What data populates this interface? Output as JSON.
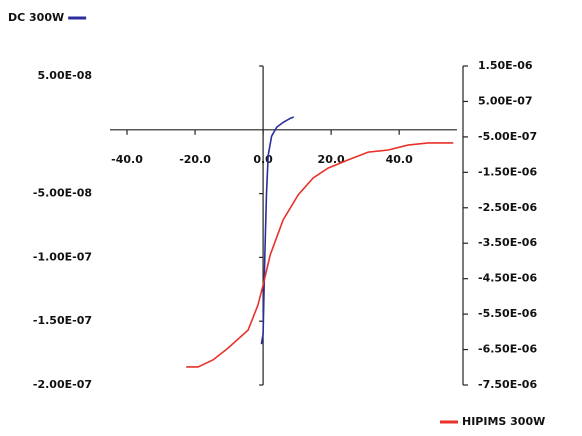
{
  "chart_data": {
    "type": "line",
    "xlim": [
      -45,
      57
    ],
    "xticks": [
      {
        "value": -40,
        "label": "-40.0"
      },
      {
        "value": -20,
        "label": "-20.0"
      },
      {
        "value": 0,
        "label": "0.0"
      },
      {
        "value": 20,
        "label": "20.0"
      },
      {
        "value": 40,
        "label": "40.0"
      }
    ],
    "ylim": [
      -2e-07,
      5e-08
    ],
    "yticks": [
      {
        "value": 5e-08,
        "label": "5.00E-08"
      },
      {
        "value": -5e-08,
        "label": "-5.00E-08"
      },
      {
        "value": -1e-07,
        "label": "-1.00E-07"
      },
      {
        "value": -1.5e-07,
        "label": "-1.50E-07"
      },
      {
        "value": -2e-07,
        "label": "-2.00E-07"
      }
    ],
    "y2lim": [
      -7.5e-06,
      1.5e-06
    ],
    "y2ticks": [
      {
        "value": 1.5e-06,
        "label": "1.50E-06"
      },
      {
        "value": 5e-07,
        "label": "5.00E-07"
      },
      {
        "value": -5e-07,
        "label": "-5.00E-07"
      },
      {
        "value": -1.5e-06,
        "label": "-1.50E-06"
      },
      {
        "value": -2.5e-06,
        "label": "-2.50E-06"
      },
      {
        "value": -3.5e-06,
        "label": "-3.50E-06"
      },
      {
        "value": -4.5e-06,
        "label": "-4.50E-06"
      },
      {
        "value": -5.5e-06,
        "label": "-5.50E-06"
      },
      {
        "value": -6.5e-06,
        "label": "-6.50E-06"
      },
      {
        "value": -7.5e-06,
        "label": "-7.50E-06"
      }
    ],
    "series": [
      {
        "name": "DC 300W",
        "color": "#2b2f9e",
        "axis": "y",
        "x": [
          -0.5,
          0,
          0.5,
          1,
          1.5,
          2.5,
          4,
          6,
          8,
          9
        ],
        "values": [
          -1.68e-07,
          -1.6e-07,
          -1e-07,
          -5e-08,
          -2e-08,
          -5e-09,
          2e-09,
          6e-09,
          9e-09,
          1e-08
        ]
      },
      {
        "name": "HIPIMS 300W",
        "color": "#e8322a",
        "axis": "y2",
        "x": [
          -22.6,
          -19.1,
          -14.7,
          -10.3,
          -4.4,
          -1.5,
          0,
          2.1,
          5.9,
          10.3,
          14.7,
          19.1,
          25,
          30.9,
          36.8,
          42.6,
          48.5,
          55.9
        ],
        "values": [
          -6.99e-06,
          -6.99e-06,
          -6.79e-06,
          -6.46e-06,
          -5.95e-06,
          -5.24e-06,
          -4.68e-06,
          -3.83e-06,
          -2.84e-06,
          -2.14e-06,
          -1.66e-06,
          -1.38e-06,
          -1.15e-06,
          -9.3e-07,
          -8.7e-07,
          -7.3e-07,
          -6.7e-07,
          -6.7e-07
        ]
      }
    ]
  }
}
